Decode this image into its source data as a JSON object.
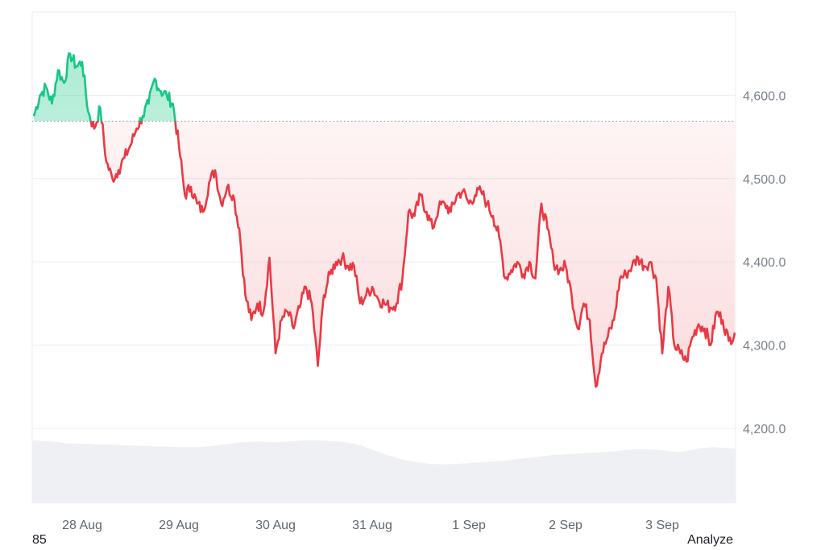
{
  "chart_data": {
    "type": "line",
    "baseline_value": 4569,
    "ylim": [
      4110,
      4700
    ],
    "y_ticks": [
      "4,600.0",
      "4,500.0",
      "4,400.0",
      "4,300.0",
      "4,200.0"
    ],
    "y_tick_values": [
      4600,
      4500,
      4400,
      4300,
      4200
    ],
    "x_tick_labels": [
      "28 Aug",
      "29 Aug",
      "30 Aug",
      "31 Aug",
      "1 Sep",
      "2 Sep",
      "3 Sep"
    ],
    "x_tick_dates": [
      "2025-08-28",
      "2025-08-29",
      "2025-08-30",
      "2025-08-31",
      "2025-09-01",
      "2025-09-02",
      "2025-09-03"
    ],
    "x_range": [
      "2025-08-27 12:00",
      "2025-09-03 18:00"
    ],
    "grid": true,
    "colors": {
      "above": "#16c784",
      "below": "#ea3943",
      "volume": "#eef0f3",
      "grid": "#eceef1",
      "baseline": "#8a8f98"
    },
    "series": [
      {
        "values": [
          [
            "2025-08-27 12:00",
            4575
          ],
          [
            "2025-08-27 13:30",
            4600
          ],
          [
            "2025-08-27 15:00",
            4610
          ],
          [
            "2025-08-27 16:30",
            4590
          ],
          [
            "2025-08-27 18:00",
            4630
          ],
          [
            "2025-08-27 19:30",
            4615
          ],
          [
            "2025-08-27 21:00",
            4650
          ],
          [
            "2025-08-27 22:30",
            4635
          ],
          [
            "2025-08-28 00:00",
            4640
          ],
          [
            "2025-08-28 01:30",
            4580
          ],
          [
            "2025-08-28 03:00",
            4560
          ],
          [
            "2025-08-28 04:30",
            4585
          ],
          [
            "2025-08-28 06:00",
            4520
          ],
          [
            "2025-08-28 07:30",
            4500
          ],
          [
            "2025-08-28 09:00",
            4510
          ],
          [
            "2025-08-28 10:30",
            4525
          ],
          [
            "2025-08-28 12:00",
            4540
          ],
          [
            "2025-08-28 13:30",
            4560
          ],
          [
            "2025-08-28 15:00",
            4575
          ],
          [
            "2025-08-28 16:30",
            4590
          ],
          [
            "2025-08-28 18:00",
            4620
          ],
          [
            "2025-08-28 19:30",
            4605
          ],
          [
            "2025-08-28 21:00",
            4600
          ],
          [
            "2025-08-28 22:30",
            4590
          ],
          [
            "2025-08-29 00:00",
            4540
          ],
          [
            "2025-08-29 01:30",
            4480
          ],
          [
            "2025-08-29 03:00",
            4490
          ],
          [
            "2025-08-29 04:30",
            4470
          ],
          [
            "2025-08-29 06:00",
            4460
          ],
          [
            "2025-08-29 07:30",
            4495
          ],
          [
            "2025-08-29 09:00",
            4510
          ],
          [
            "2025-08-29 10:30",
            4470
          ],
          [
            "2025-08-29 12:00",
            4490
          ],
          [
            "2025-08-29 13:30",
            4480
          ],
          [
            "2025-08-29 15:00",
            4440
          ],
          [
            "2025-08-29 16:30",
            4360
          ],
          [
            "2025-08-29 18:00",
            4330
          ],
          [
            "2025-08-29 19:30",
            4350
          ],
          [
            "2025-08-29 21:00",
            4340
          ],
          [
            "2025-08-29 22:30",
            4405
          ],
          [
            "2025-08-30 00:00",
            4290
          ],
          [
            "2025-08-30 01:30",
            4330
          ],
          [
            "2025-08-30 03:00",
            4340
          ],
          [
            "2025-08-30 04:30",
            4320
          ],
          [
            "2025-08-30 06:00",
            4345
          ],
          [
            "2025-08-30 07:30",
            4370
          ],
          [
            "2025-08-30 09:00",
            4350
          ],
          [
            "2025-08-30 10:30",
            4275
          ],
          [
            "2025-08-30 12:00",
            4360
          ],
          [
            "2025-08-30 13:30",
            4385
          ],
          [
            "2025-08-30 15:00",
            4400
          ],
          [
            "2025-08-30 16:30",
            4405
          ],
          [
            "2025-08-30 18:00",
            4395
          ],
          [
            "2025-08-30 19:30",
            4395
          ],
          [
            "2025-08-30 21:00",
            4350
          ],
          [
            "2025-08-30 22:30",
            4360
          ],
          [
            "2025-08-31 00:00",
            4370
          ],
          [
            "2025-08-31 01:30",
            4355
          ],
          [
            "2025-08-31 03:00",
            4350
          ],
          [
            "2025-08-31 04:30",
            4345
          ],
          [
            "2025-08-31 06:00",
            4350
          ],
          [
            "2025-08-31 07:30",
            4380
          ],
          [
            "2025-08-31 09:00",
            4460
          ],
          [
            "2025-08-31 10:30",
            4455
          ],
          [
            "2025-08-31 12:00",
            4480
          ],
          [
            "2025-08-31 13:30",
            4460
          ],
          [
            "2025-08-31 15:00",
            4440
          ],
          [
            "2025-08-31 16:30",
            4465
          ],
          [
            "2025-08-31 18:00",
            4470
          ],
          [
            "2025-08-31 19:30",
            4460
          ],
          [
            "2025-08-31 21:00",
            4480
          ],
          [
            "2025-08-31 22:30",
            4485
          ],
          [
            "2025-09-01 00:00",
            4470
          ],
          [
            "2025-09-01 01:30",
            4480
          ],
          [
            "2025-09-01 03:00",
            4485
          ],
          [
            "2025-09-01 04:30",
            4470
          ],
          [
            "2025-09-01 06:00",
            4455
          ],
          [
            "2025-09-01 07:30",
            4430
          ],
          [
            "2025-09-01 09:00",
            4380
          ],
          [
            "2025-09-01 10:30",
            4390
          ],
          [
            "2025-09-01 12:00",
            4400
          ],
          [
            "2025-09-01 13:30",
            4385
          ],
          [
            "2025-09-01 15:00",
            4400
          ],
          [
            "2025-09-01 16:30",
            4380
          ],
          [
            "2025-09-01 18:00",
            4470
          ],
          [
            "2025-09-01 19:30",
            4440
          ],
          [
            "2025-09-01 21:00",
            4400
          ],
          [
            "2025-09-01 22:30",
            4390
          ],
          [
            "2025-09-02 00:00",
            4395
          ],
          [
            "2025-09-02 01:30",
            4360
          ],
          [
            "2025-09-02 03:00",
            4320
          ],
          [
            "2025-09-02 04:30",
            4350
          ],
          [
            "2025-09-02 06:00",
            4330
          ],
          [
            "2025-09-02 07:30",
            4250
          ],
          [
            "2025-09-02 09:00",
            4290
          ],
          [
            "2025-09-02 10:30",
            4310
          ],
          [
            "2025-09-02 12:00",
            4330
          ],
          [
            "2025-09-02 13:30",
            4380
          ],
          [
            "2025-09-02 15:00",
            4385
          ],
          [
            "2025-09-02 16:30",
            4395
          ],
          [
            "2025-09-02 18:00",
            4405
          ],
          [
            "2025-09-02 19:30",
            4395
          ],
          [
            "2025-09-02 21:00",
            4400
          ],
          [
            "2025-09-02 22:30",
            4380
          ],
          [
            "2025-09-03 00:00",
            4290
          ],
          [
            "2025-09-03 01:30",
            4370
          ],
          [
            "2025-09-03 03:00",
            4300
          ],
          [
            "2025-09-03 04:30",
            4290
          ],
          [
            "2025-09-03 06:00",
            4280
          ],
          [
            "2025-09-03 07:30",
            4310
          ],
          [
            "2025-09-03 09:00",
            4325
          ],
          [
            "2025-09-03 10:30",
            4320
          ],
          [
            "2025-09-03 12:00",
            4300
          ],
          [
            "2025-09-03 13:30",
            4340
          ],
          [
            "2025-09-03 15:00",
            4330
          ],
          [
            "2025-09-03 16:30",
            4305
          ],
          [
            "2025-09-03 18:00",
            4315
          ]
        ]
      }
    ],
    "volume_values": [
      0.92,
      0.91,
      0.9,
      0.88,
      0.87,
      0.87,
      0.86,
      0.86,
      0.85,
      0.84,
      0.84,
      0.83,
      0.83,
      0.82,
      0.82,
      0.82,
      0.83,
      0.85,
      0.87,
      0.89,
      0.9,
      0.9,
      0.89,
      0.9,
      0.91,
      0.92,
      0.92,
      0.91,
      0.9,
      0.88,
      0.84,
      0.78,
      0.72,
      0.67,
      0.63,
      0.6,
      0.58,
      0.57,
      0.57,
      0.58,
      0.59,
      0.6,
      0.61,
      0.62,
      0.64,
      0.66,
      0.68,
      0.7,
      0.71,
      0.72,
      0.73,
      0.74,
      0.75,
      0.76,
      0.78,
      0.79,
      0.79,
      0.78,
      0.76,
      0.75,
      0.78,
      0.81,
      0.82,
      0.81,
      0.8
    ]
  },
  "footer": {
    "left_text": "85",
    "right_text": "Analyze"
  }
}
